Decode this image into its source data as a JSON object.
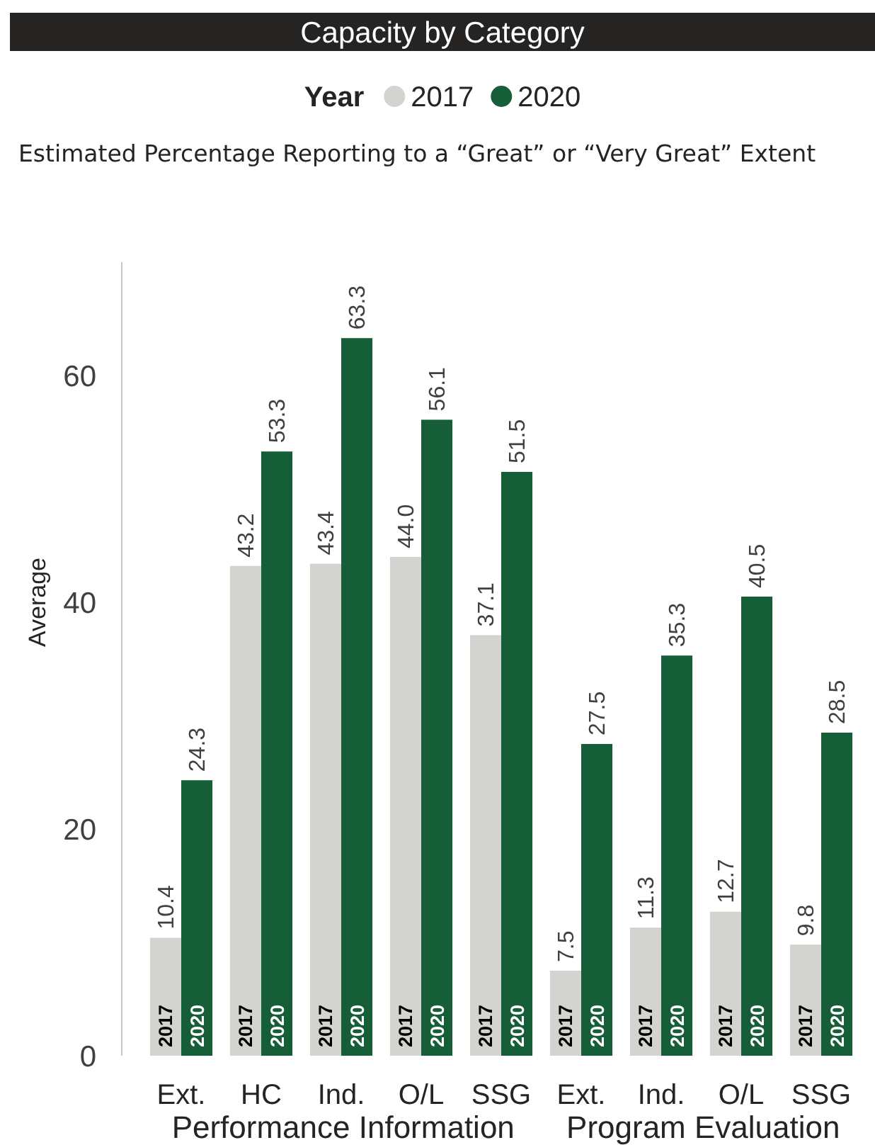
{
  "chart_data": {
    "type": "bar",
    "title": "Capacity by Category",
    "subtitle": "Estimated Percentage Reporting to a “Great” or “Very Great” Extent",
    "ylabel": "Average",
    "legend_title": "Year",
    "legend": "top",
    "categories": [
      "Ext.",
      "HC",
      "Ind.",
      "O/L",
      "SSG",
      "Ext.",
      "Ind.",
      "O/L",
      "SSG"
    ],
    "series": [
      {
        "name": "2017",
        "color": "#d3d3cf",
        "values": [
          10.4,
          43.2,
          43.4,
          44.0,
          37.1,
          7.5,
          11.3,
          12.7,
          9.8
        ],
        "value_labels": [
          "10.4",
          "43.2",
          "43.4",
          "44.0",
          "37.1",
          "7.5",
          "11.3",
          "12.7",
          "9.8"
        ]
      },
      {
        "name": "2020",
        "color": "#165e38",
        "values": [
          24.3,
          53.3,
          63.3,
          56.1,
          51.5,
          27.5,
          35.3,
          40.5,
          28.5
        ],
        "value_labels": [
          "24.3",
          "53.3",
          "63.3",
          "56.1",
          "51.5",
          "27.5",
          "35.3",
          "40.5",
          "28.5"
        ]
      }
    ],
    "ylim": [
      0,
      70
    ],
    "yticks": [
      0,
      20,
      40,
      60
    ],
    "annotations": [
      "Performance Information",
      "Program Evaluation"
    ]
  }
}
